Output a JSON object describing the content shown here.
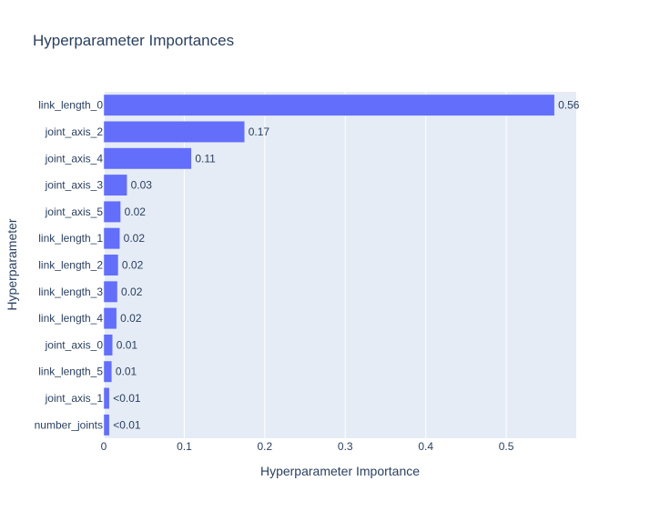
{
  "chart_data": {
    "type": "bar",
    "orientation": "horizontal",
    "title": "Hyperparameter Importances",
    "xlabel": "Hyperparameter Importance",
    "ylabel": "Hyperparameter",
    "xlim": [
      0,
      0.587
    ],
    "xticks": [
      0,
      0.1,
      0.2,
      0.3,
      0.4,
      0.5
    ],
    "xtick_labels": [
      "0",
      "0.1",
      "0.2",
      "0.3",
      "0.4",
      "0.5"
    ],
    "grid": true,
    "legend": "none",
    "bar_color": "#636efa",
    "background_color": "#e5ecf6",
    "text_color": "#2a3f5f",
    "categories": [
      "link_length_0",
      "joint_axis_2",
      "joint_axis_4",
      "joint_axis_3",
      "joint_axis_5",
      "link_length_1",
      "link_length_2",
      "link_length_3",
      "link_length_4",
      "joint_axis_0",
      "link_length_5",
      "joint_axis_1",
      "number_joints"
    ],
    "values": [
      0.56,
      0.175,
      0.109,
      0.029,
      0.021,
      0.02,
      0.018,
      0.017,
      0.016,
      0.011,
      0.01,
      0.007,
      0.007
    ],
    "value_labels": [
      "0.56",
      "0.17",
      "0.11",
      "0.03",
      "0.02",
      "0.02",
      "0.02",
      "0.02",
      "0.02",
      "0.01",
      "0.01",
      "<0.01",
      "<0.01"
    ]
  }
}
